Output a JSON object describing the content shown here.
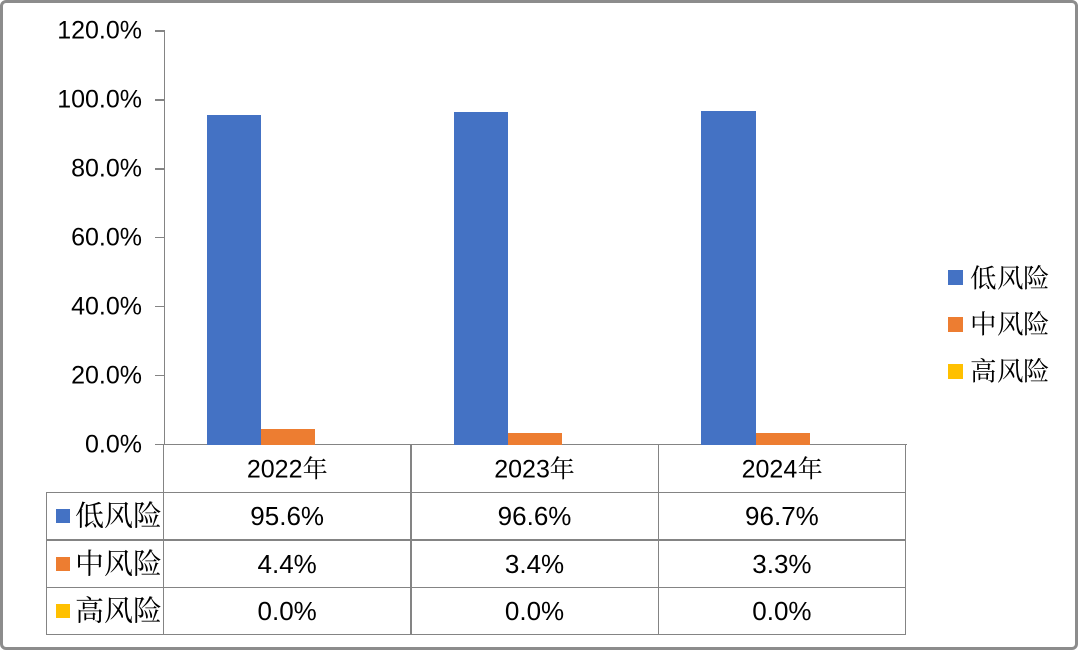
{
  "window": {
    "background": "#ffffff",
    "frame_border_color": "#8c8c8c"
  },
  "chart_data": {
    "type": "bar",
    "title": "",
    "categories": [
      "2022年",
      "2023年",
      "2024年"
    ],
    "series": [
      {
        "name": "低风险",
        "color": "#4472C4",
        "values": [
          95.6,
          96.6,
          96.7
        ],
        "display": [
          "95.6%",
          "96.6%",
          "96.7%"
        ]
      },
      {
        "name": "中风险",
        "color": "#ED7D31",
        "values": [
          4.4,
          3.4,
          3.3
        ],
        "display": [
          "4.4%",
          "3.4%",
          "3.3%"
        ]
      },
      {
        "name": "高风险",
        "color": "#FFC000",
        "values": [
          0.0,
          0.0,
          0.0
        ],
        "display": [
          "0.0%",
          "0.0%",
          "0.0%"
        ]
      }
    ],
    "y_axis": {
      "min": 0,
      "max": 120,
      "step": 20,
      "unit": "%",
      "tick_labels": [
        "120.0%",
        "100.0%",
        "80.0%",
        "60.0%",
        "40.0%",
        "20.0%",
        "0.0%"
      ]
    },
    "x_axis": {
      "tick_labels": [
        "2022年",
        "2023年",
        "2024年"
      ]
    },
    "legend": {
      "position": "right",
      "entries": [
        "低风险",
        "中风险",
        "高风险"
      ]
    },
    "gridlines": false,
    "data_table": {
      "shown": true,
      "legend_keys": true
    }
  }
}
